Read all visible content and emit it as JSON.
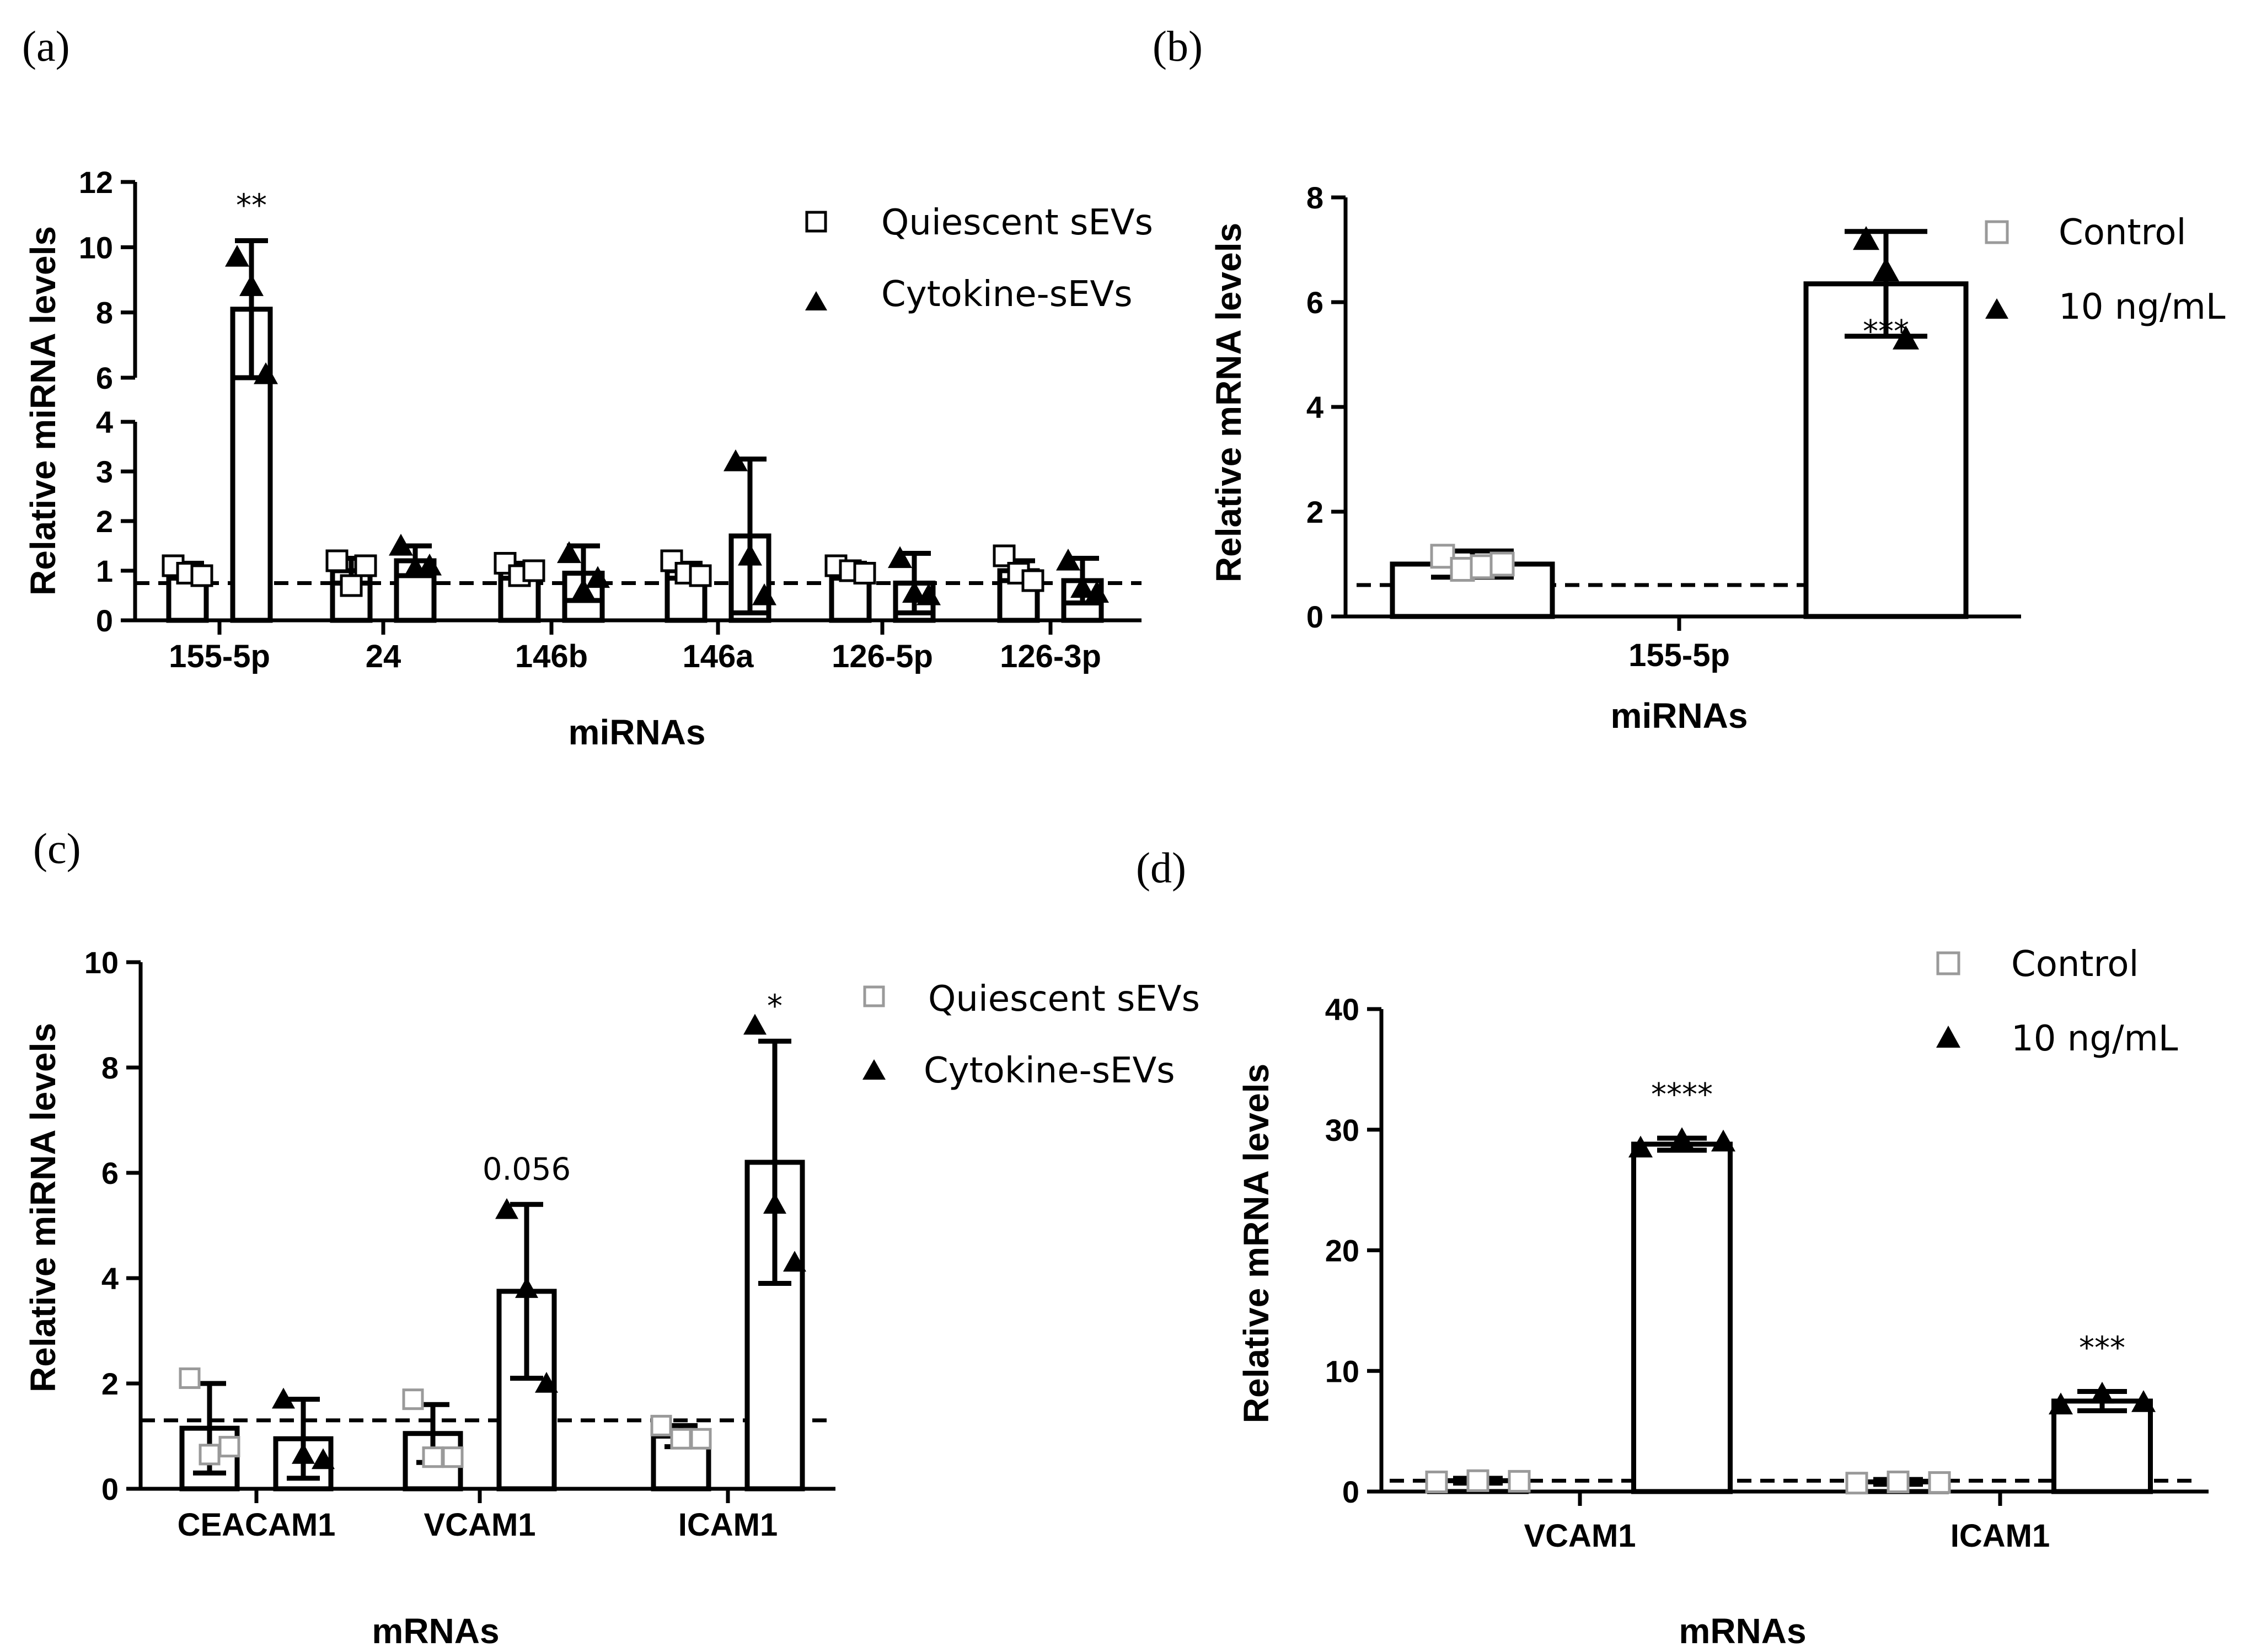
{
  "panels": [
    "(a)",
    "(b)",
    "(c)",
    "(d)"
  ],
  "colors": {
    "ink": "#000000",
    "control_marker": "#9a9a9a"
  },
  "chart_data": [
    {
      "type": "bar",
      "panel": "(a)",
      "xlabel": "miRNAs",
      "ylabel": "Relative miRNA levels",
      "categories": [
        "155-5p",
        "24",
        "146b",
        "146a",
        "126-5p",
        "126-3p"
      ],
      "axis_break": {
        "lower": [
          0,
          4
        ],
        "upper": [
          6,
          12
        ]
      },
      "yticks_lower": [
        0,
        1,
        2,
        3,
        4
      ],
      "yticks_upper": [
        6,
        8,
        10,
        12
      ],
      "reference_line": 0.75,
      "series": [
        {
          "name": "Quiescent sEVs",
          "marker": "square",
          "values": [
            1.0,
            1.0,
            1.0,
            1.0,
            1.0,
            1.0
          ],
          "errors": [
            0.15,
            0.25,
            0.15,
            0.15,
            0.15,
            0.2
          ],
          "points": [
            [
              1.1,
              0.95,
              0.9
            ],
            [
              1.2,
              0.7,
              1.1
            ],
            [
              1.15,
              0.9,
              1.0
            ],
            [
              1.2,
              0.95,
              0.9
            ],
            [
              1.1,
              1.0,
              0.95
            ],
            [
              1.3,
              0.95,
              0.8
            ]
          ]
        },
        {
          "name": "Cytokine-sEVs",
          "marker": "triangle",
          "values": [
            8.1,
            1.2,
            0.95,
            1.7,
            0.75,
            0.8
          ],
          "errors": [
            2.1,
            0.3,
            0.55,
            1.55,
            0.6,
            0.45
          ],
          "points": [
            [
              9.7,
              8.8,
              6.1
            ],
            [
              1.5,
              1.05,
              1.1
            ],
            [
              1.35,
              0.6,
              0.85
            ],
            [
              3.2,
              1.3,
              0.5
            ],
            [
              1.25,
              0.55,
              0.5
            ],
            [
              1.2,
              0.65,
              0.55
            ]
          ]
        }
      ],
      "annotations": [
        {
          "category": "155-5p",
          "text": "**"
        }
      ],
      "legend": {
        "position": "top-right"
      }
    },
    {
      "type": "bar",
      "panel": "(b)",
      "xlabel": "miRNAs",
      "ylabel": "Relative mRNA levels",
      "categories": [
        "155-5p"
      ],
      "ylim": [
        0,
        8
      ],
      "yticks": [
        0,
        2,
        4,
        6,
        8
      ],
      "reference_line": 0.6,
      "series": [
        {
          "name": "Control",
          "marker": "square",
          "values": [
            1.0
          ],
          "errors": [
            0.25
          ],
          "points": [
            [
              1.15,
              0.9,
              0.95,
              1.0
            ]
          ]
        },
        {
          "name": "10 ng/mL",
          "marker": "triangle",
          "values": [
            6.35
          ],
          "errors": [
            1.0
          ],
          "points": [
            [
              7.2,
              6.6,
              5.3
            ]
          ]
        }
      ],
      "annotations": [
        {
          "category": "155-5p",
          "text": "***"
        }
      ],
      "legend": {
        "position": "top-right"
      }
    },
    {
      "type": "bar",
      "panel": "(c)",
      "xlabel": "mRNAs",
      "ylabel": "Relative miRNA levels",
      "categories": [
        "CEACAM1",
        "VCAM1",
        "ICAM1"
      ],
      "ylim": [
        0,
        10
      ],
      "yticks": [
        0,
        2,
        4,
        6,
        8,
        10
      ],
      "reference_line": 1.3,
      "series": [
        {
          "name": "Quiescent sEVs",
          "marker": "square",
          "values": [
            1.15,
            1.05,
            1.0
          ],
          "errors": [
            0.85,
            0.55,
            0.2
          ],
          "points": [
            [
              2.1,
              0.65,
              0.8
            ],
            [
              1.7,
              0.6,
              0.6
            ],
            [
              1.2,
              0.95,
              0.95
            ]
          ]
        },
        {
          "name": "Cytokine-sEVs",
          "marker": "triangle",
          "values": [
            0.95,
            3.75,
            6.2
          ],
          "errors": [
            0.75,
            1.65,
            2.3
          ],
          "points": [
            [
              1.7,
              0.65,
              0.55
            ],
            [
              5.3,
              3.8,
              2.0
            ],
            [
              8.8,
              5.4,
              4.3
            ]
          ]
        }
      ],
      "annotations": [
        {
          "category": "VCAM1",
          "text": "0.056"
        },
        {
          "category": "ICAM1",
          "text": "*"
        }
      ],
      "legend": {
        "position": "top-right"
      }
    },
    {
      "type": "bar",
      "panel": "(d)",
      "xlabel": "mRNAs",
      "ylabel": "Relative mRNA levels",
      "categories": [
        "VCAM1",
        "ICAM1"
      ],
      "ylim": [
        0,
        40
      ],
      "yticks": [
        0,
        10,
        20,
        30,
        40
      ],
      "reference_line": 0.9,
      "series": [
        {
          "name": "Control",
          "marker": "square",
          "values": [
            0.9,
            0.8
          ],
          "errors": [
            0.2,
            0.2
          ],
          "points": [
            [
              0.8,
              0.9,
              0.85
            ],
            [
              0.7,
              0.8,
              0.75
            ]
          ]
        },
        {
          "name": "10 ng/mL",
          "marker": "triangle",
          "values": [
            28.8,
            7.5
          ],
          "errors": [
            0.5,
            0.8
          ],
          "points": [
            [
              28.5,
              29.2,
              29.0
            ],
            [
              7.2,
              8.1,
              7.4
            ]
          ]
        }
      ],
      "annotations": [
        {
          "category": "VCAM1",
          "text": "****"
        },
        {
          "category": "ICAM1",
          "text": "***"
        }
      ],
      "legend": {
        "position": "top-right"
      }
    }
  ]
}
